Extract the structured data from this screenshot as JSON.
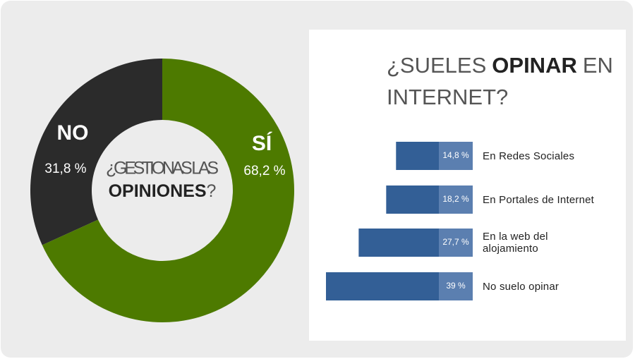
{
  "chart_data": [
    {
      "type": "donut",
      "center_text": [
        "¿GESTIONAS LAS",
        "OPINIONES",
        "?"
      ],
      "categories": [
        "NO",
        "SÍ"
      ],
      "values": [
        31.8,
        68.2
      ],
      "value_labels": [
        "31,8 %",
        "68,2 %"
      ],
      "colors": [
        "#2b2b2b",
        "#4d7a00"
      ]
    },
    {
      "type": "hbar",
      "title": [
        "¿SUELES",
        "OPINAR",
        "EN",
        "INTERNET?"
      ],
      "categories": [
        "En Redes Sociales",
        "En Portales de Internet",
        "En la web del alojamiento",
        "No suelo opinar"
      ],
      "values": [
        14.8,
        18.2,
        27.7,
        39
      ],
      "value_labels": [
        "14,8  %",
        "18,2 %",
        "27,7 %",
        "39 %"
      ],
      "color": "#335f96"
    }
  ]
}
